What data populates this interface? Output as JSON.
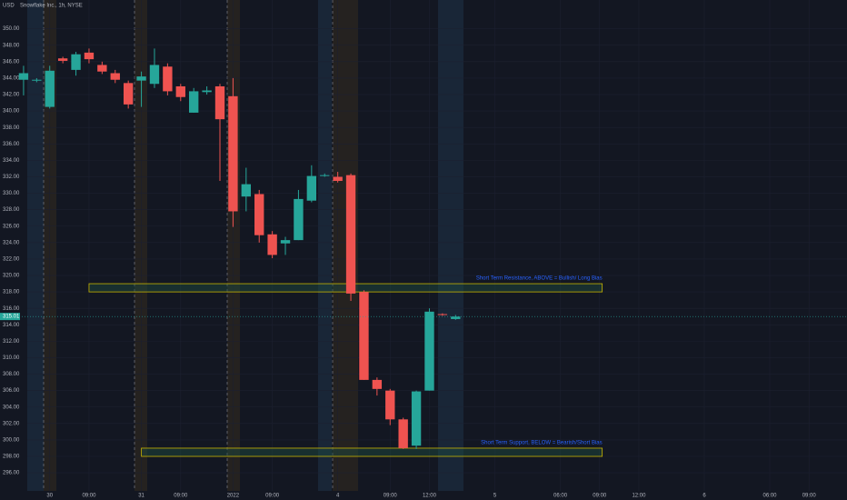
{
  "chart_data": {
    "type": "candlestick",
    "title": "Snowflake Inc., 1h, NYSE",
    "currency": "USD",
    "x": [
      0,
      1,
      2,
      3,
      4,
      5,
      6,
      7,
      8,
      9,
      10,
      11,
      12,
      13,
      14,
      15,
      16,
      17,
      18,
      19,
      20,
      21,
      22,
      23,
      24,
      25,
      26,
      27,
      28,
      29,
      30,
      31,
      32,
      33
    ],
    "open": [
      343.8,
      343.8,
      340.5,
      346.4,
      345.0,
      347.1,
      345.6,
      344.6,
      343.4,
      343.7,
      343.3,
      345.4,
      343.0,
      339.8,
      342.3,
      343.0,
      341.8,
      329.6,
      329.9,
      325.0,
      323.9,
      324.3,
      329.1,
      332.2,
      332.0,
      332.2,
      318.0,
      307.3,
      306.0,
      302.5,
      299.3,
      306.0,
      315.3,
      314.7
    ],
    "high": [
      345.5,
      344.0,
      345.5,
      346.6,
      347.2,
      347.6,
      346.0,
      345.0,
      343.7,
      344.8,
      347.6,
      345.8,
      343.3,
      342.8,
      343.0,
      343.3,
      344.0,
      333.1,
      330.4,
      325.4,
      324.7,
      330.4,
      333.4,
      332.4,
      332.6,
      332.4,
      318.2,
      307.6,
      306.2,
      302.7,
      306.0,
      316.0,
      315.4,
      315.2
    ],
    "low": [
      341.9,
      343.5,
      340.3,
      345.8,
      344.3,
      345.8,
      344.5,
      343.4,
      340.3,
      340.5,
      342.8,
      341.9,
      341.2,
      339.8,
      342.0,
      331.5,
      325.9,
      327.8,
      324.0,
      322.1,
      322.5,
      324.3,
      328.9,
      332.0,
      331.3,
      316.9,
      307.3,
      305.4,
      301.8,
      298.9,
      298.9,
      306.0,
      315.1,
      314.6
    ],
    "close": [
      344.6,
      343.8,
      344.9,
      346.1,
      346.9,
      346.3,
      344.8,
      343.8,
      340.8,
      344.2,
      345.6,
      342.4,
      341.7,
      342.4,
      342.5,
      339.0,
      327.8,
      331.1,
      324.9,
      322.5,
      324.3,
      329.3,
      332.1,
      332.2,
      331.5,
      317.8,
      307.3,
      306.2,
      302.5,
      299.0,
      305.9,
      315.6,
      315.2,
      315.0
    ],
    "up_color": "#26a69a",
    "down_color": "#ef5350",
    "xlim": [
      -1.8,
      62.9
    ],
    "xticks": [
      {
        "value": 2,
        "label": "30"
      },
      {
        "value": 5,
        "label": "09:00"
      },
      {
        "value": 9,
        "label": "31"
      },
      {
        "value": 12,
        "label": "09:00"
      },
      {
        "value": 16,
        "label": "2022"
      },
      {
        "value": 19,
        "label": "09:00"
      },
      {
        "value": 24,
        "label": "4"
      },
      {
        "value": 28,
        "label": "09:00"
      },
      {
        "value": 31,
        "label": "12:00"
      },
      {
        "value": 36,
        "label": "5"
      },
      {
        "value": 41,
        "label": "06:00"
      },
      {
        "value": 44,
        "label": "09:00"
      },
      {
        "value": 47,
        "label": "12:00"
      },
      {
        "value": 52,
        "label": "6"
      },
      {
        "value": 57,
        "label": "06:00"
      },
      {
        "value": 60,
        "label": "09:00"
      }
    ],
    "ylim": [
      293.8,
      353.5
    ],
    "yticks": [
      {
        "value": 296,
        "label": "296.00"
      },
      {
        "value": 298,
        "label": "298.00"
      },
      {
        "value": 300,
        "label": "300.00"
      },
      {
        "value": 302,
        "label": "302.00"
      },
      {
        "value": 304,
        "label": "304.00"
      },
      {
        "value": 306,
        "label": "306.00"
      },
      {
        "value": 308,
        "label": "308.00"
      },
      {
        "value": 310,
        "label": "310.00"
      },
      {
        "value": 312,
        "label": "312.00"
      },
      {
        "value": 314,
        "label": "314.00"
      },
      {
        "value": 316,
        "label": "316.00"
      },
      {
        "value": 318,
        "label": "318.00"
      },
      {
        "value": 320,
        "label": "320.00"
      },
      {
        "value": 322,
        "label": "322.00"
      },
      {
        "value": 324,
        "label": "324.00"
      },
      {
        "value": 326,
        "label": "326.00"
      },
      {
        "value": 328,
        "label": "328.00"
      },
      {
        "value": 330,
        "label": "330.00"
      },
      {
        "value": 332,
        "label": "332.00"
      },
      {
        "value": 334,
        "label": "334.00"
      },
      {
        "value": 336,
        "label": "336.00"
      },
      {
        "value": 338,
        "label": "338.00"
      },
      {
        "value": 340,
        "label": "340.00"
      },
      {
        "value": 342,
        "label": "342.00"
      },
      {
        "value": 344,
        "label": "344.00"
      },
      {
        "value": 346,
        "label": "346.00"
      },
      {
        "value": 348,
        "label": "348.00"
      },
      {
        "value": 350,
        "label": "350.00"
      }
    ],
    "grid": true,
    "last_price": 315.01,
    "zones": [
      {
        "label": "Short Term Resistance, ABOVE = Bullish/ Long Bias",
        "x": [
          5,
          44.2
        ],
        "y": [
          318.0,
          319.0
        ],
        "color": "#c8b400",
        "text_color": "#2962ff"
      },
      {
        "label": "Short Term Support, BELOW = Bearish/Short Bias",
        "x": [
          9,
          44.2
        ],
        "y": [
          298.0,
          299.0
        ],
        "color": "#c8b400",
        "text_color": "#2962ff"
      }
    ]
  }
}
